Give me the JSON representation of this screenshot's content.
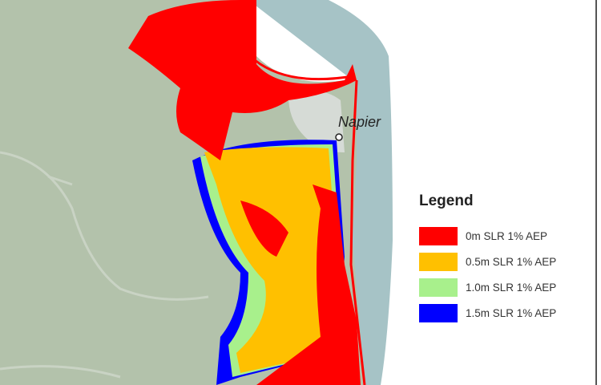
{
  "map": {
    "place_label": "Napier",
    "colors": {
      "land": "#b3c2ab",
      "sea": "#a6c3c6",
      "background": "#ffffff"
    }
  },
  "legend": {
    "title": "Legend",
    "items": [
      {
        "label": "0m SLR 1% AEP",
        "color": "#ff0000"
      },
      {
        "label": "0.5m SLR 1% AEP",
        "color": "#ffc000"
      },
      {
        "label": "1.0m SLR 1% AEP",
        "color": "#a8f08c"
      },
      {
        "label": "1.5m SLR 1% AEP",
        "color": "#0000ff"
      }
    ]
  }
}
